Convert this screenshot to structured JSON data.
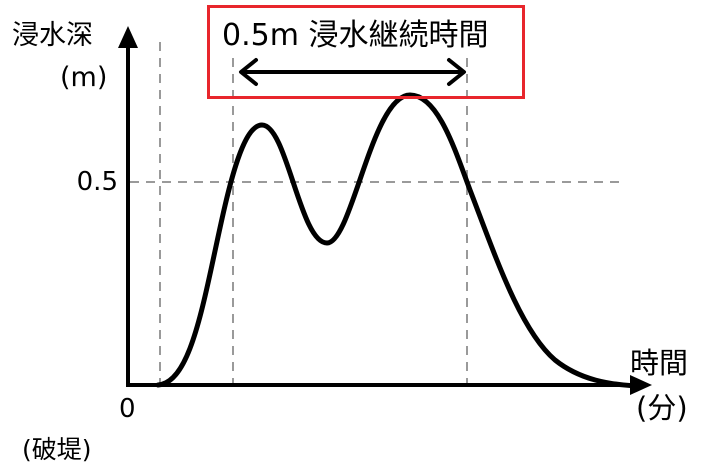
{
  "y_axis": {
    "label": "浸水深",
    "unit": "(m)",
    "tick_label": "0.5"
  },
  "x_axis": {
    "label": "時間",
    "unit": "(分)",
    "origin_label": "0",
    "origin_note": "(破堤)"
  },
  "duration": {
    "label": "0.5m 浸水継続時間"
  },
  "colors": {
    "box": "#e8262c",
    "curve": "#000000",
    "axis": "#000000",
    "guide": "#9a9a9a"
  }
}
